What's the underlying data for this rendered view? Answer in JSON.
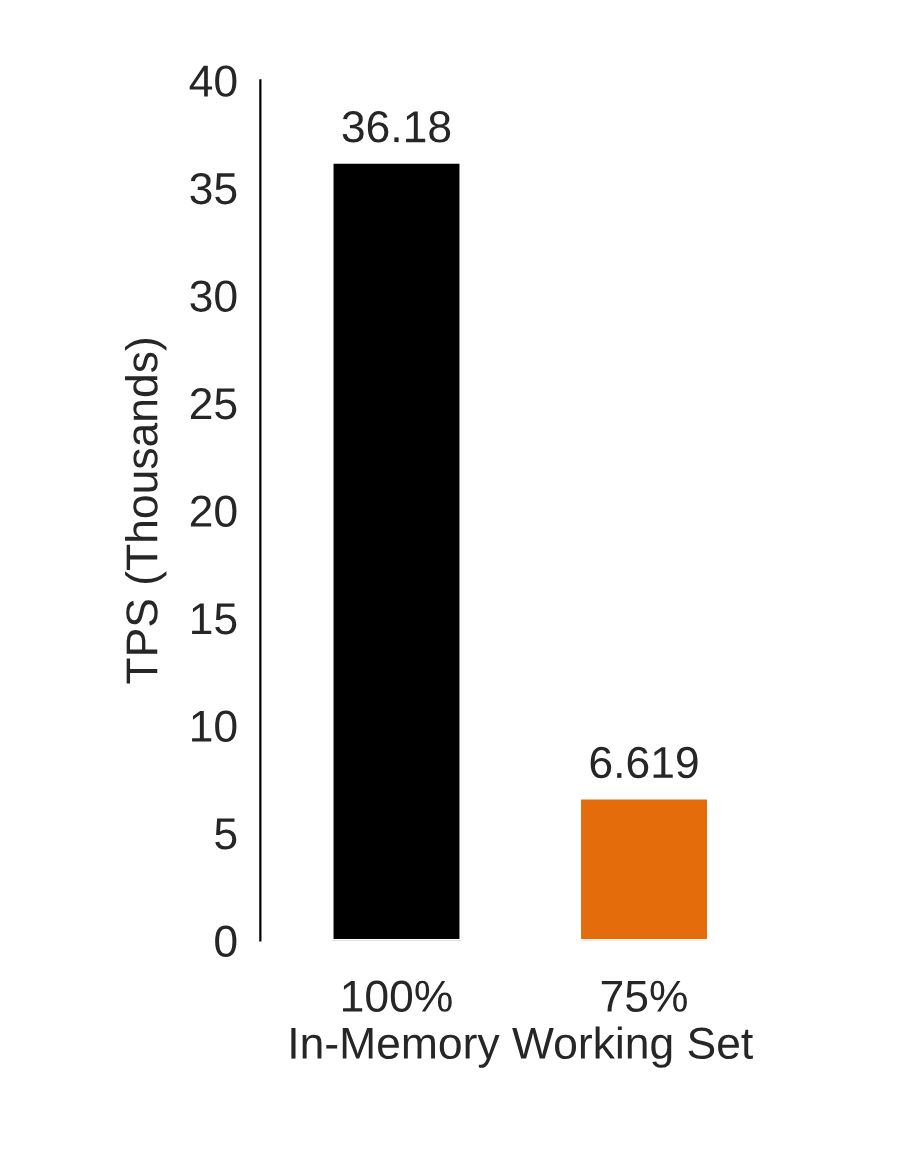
{
  "chart_data": {
    "type": "bar",
    "xlabel": "In-Memory Working Set",
    "ylabel": "TPS (Thousands)",
    "categories": [
      "100%",
      "75%"
    ],
    "values": [
      36.18,
      6.619
    ],
    "colors": [
      "#000000",
      "#e46c0a"
    ],
    "ylim": [
      0,
      40
    ],
    "yticks": [
      0,
      5,
      10,
      15,
      20,
      25,
      30,
      35,
      40
    ],
    "data_labels": true,
    "grid": false,
    "legend": false
  }
}
